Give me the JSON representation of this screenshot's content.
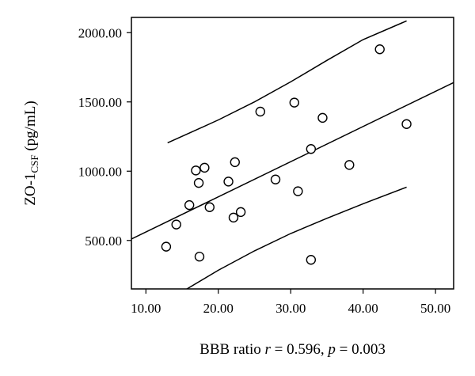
{
  "chart_data": {
    "type": "scatter",
    "xlabel": "BBB ratio",
    "xlabel_stats": {
      "r_symbol": "r",
      "r_text": " = 0.596, ",
      "p_symbol": "p",
      "p_text": " = 0.003"
    },
    "ylabel": {
      "main": "ZO-1",
      "subscript": "CSF",
      "unit": " (pg/mL)"
    },
    "xlim": [
      8.0,
      52.5
    ],
    "ylim": [
      150.0,
      2110.0
    ],
    "x_ticks": [
      10,
      20,
      30,
      40,
      50
    ],
    "x_tick_labels": [
      "10.00",
      "20.00",
      "30.00",
      "40.00",
      "50.00"
    ],
    "y_ticks": [
      500,
      1000,
      1500,
      2000
    ],
    "y_tick_labels": [
      "500.00",
      "1000.00",
      "1500.00",
      "2000.00"
    ],
    "grid": false,
    "points": [
      {
        "x": 12.8,
        "y": 455
      },
      {
        "x": 14.2,
        "y": 615
      },
      {
        "x": 16.0,
        "y": 755
      },
      {
        "x": 16.9,
        "y": 1005
      },
      {
        "x": 17.3,
        "y": 915
      },
      {
        "x": 17.4,
        "y": 383
      },
      {
        "x": 18.1,
        "y": 1025
      },
      {
        "x": 18.8,
        "y": 740
      },
      {
        "x": 21.4,
        "y": 925
      },
      {
        "x": 22.1,
        "y": 665
      },
      {
        "x": 22.3,
        "y": 1065
      },
      {
        "x": 23.1,
        "y": 705
      },
      {
        "x": 25.8,
        "y": 1430
      },
      {
        "x": 27.9,
        "y": 940
      },
      {
        "x": 30.5,
        "y": 1495
      },
      {
        "x": 31.0,
        "y": 855
      },
      {
        "x": 32.8,
        "y": 1160
      },
      {
        "x": 32.8,
        "y": 360
      },
      {
        "x": 34.4,
        "y": 1385
      },
      {
        "x": 38.1,
        "y": 1045
      },
      {
        "x": 42.3,
        "y": 1880
      },
      {
        "x": 46.0,
        "y": 1340
      }
    ],
    "fit_line": {
      "x": [
        8.0,
        52.5
      ],
      "y": [
        510,
        1640
      ]
    },
    "upper_band": {
      "x": [
        13.0,
        16.0,
        20.0,
        25.0,
        30.0,
        35.0,
        40.0,
        46.0
      ],
      "y": [
        1205,
        1275,
        1370,
        1500,
        1645,
        1800,
        1950,
        2085
      ]
    },
    "lower_band": {
      "x": [
        15.5,
        20.0,
        25.0,
        30.0,
        35.0,
        40.0,
        46.0
      ],
      "y": [
        145,
        285,
        425,
        550,
        660,
        765,
        885
      ]
    }
  }
}
